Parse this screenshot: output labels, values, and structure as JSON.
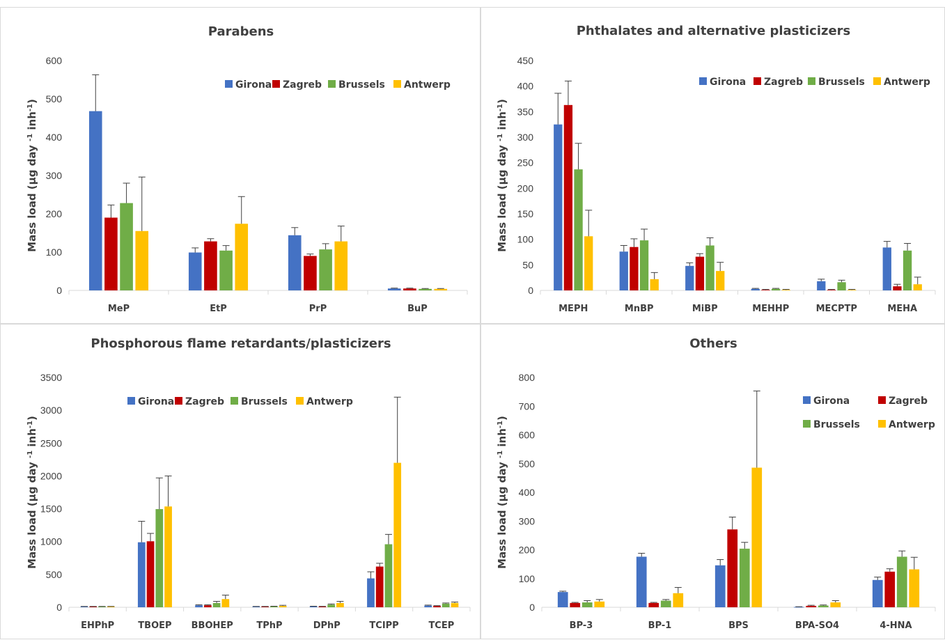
{
  "colors": {
    "Girona": "#4472c4",
    "Zagreb": "#c00000",
    "Brussels": "#70ad47",
    "Antwerp": "#ffc000"
  },
  "chart_data": [
    {
      "type": "bar",
      "title": "Parabens",
      "ylabel": "Mass load (µg day -1 inh-1)",
      "ylim": [
        0,
        600
      ],
      "yticks": [
        0,
        100,
        200,
        300,
        400,
        500,
        600
      ],
      "categories": [
        "MeP",
        "EtP",
        "PrP",
        "BuP"
      ],
      "legend": "top-right",
      "grid": false,
      "series": [
        {
          "name": "Girona",
          "values": [
            468,
            99,
            144,
            5
          ],
          "errors": [
            95,
            12,
            20,
            1
          ]
        },
        {
          "name": "Zagreb",
          "values": [
            190,
            128,
            90,
            5
          ],
          "errors": [
            33,
            7,
            5,
            1
          ]
        },
        {
          "name": "Brussels",
          "values": [
            228,
            104,
            107,
            4
          ],
          "errors": [
            52,
            13,
            15,
            1
          ]
        },
        {
          "name": "Antwerp",
          "values": [
            155,
            174,
            128,
            4
          ],
          "errors": [
            141,
            71,
            40,
            1
          ]
        }
      ]
    },
    {
      "type": "bar",
      "title": "Phthalates and alternative plasticizers",
      "ylabel": "Mass load (µg day -1 inh-1)",
      "ylim": [
        0,
        450
      ],
      "yticks": [
        0,
        50,
        100,
        150,
        200,
        250,
        300,
        350,
        400,
        450
      ],
      "categories": [
        "MEPH",
        "MnBP",
        "MiBP",
        "MEHHP",
        "MECPTP",
        "MEHA"
      ],
      "legend": "top-right",
      "grid": false,
      "series": [
        {
          "name": "Girona",
          "values": [
            325,
            76,
            48,
            3,
            18,
            84
          ],
          "errors": [
            61,
            12,
            6,
            1,
            4,
            12
          ]
        },
        {
          "name": "Zagreb",
          "values": [
            363,
            85,
            66,
            1,
            1,
            8
          ],
          "errors": [
            47,
            16,
            6,
            1,
            1,
            4
          ]
        },
        {
          "name": "Brussels",
          "values": [
            237,
            98,
            88,
            3,
            16,
            78
          ],
          "errors": [
            51,
            22,
            15,
            1,
            4,
            14
          ]
        },
        {
          "name": "Antwerp",
          "values": [
            106,
            22,
            38,
            1,
            1,
            12
          ],
          "errors": [
            51,
            13,
            17,
            1,
            1,
            14
          ]
        }
      ]
    },
    {
      "type": "bar",
      "title": "Phosphorous flame retardants/plasticizers",
      "ylabel": "Mass load (µg day -1 inh-1)",
      "ylim": [
        0,
        3500
      ],
      "yticks": [
        0,
        500,
        1000,
        1500,
        2000,
        2500,
        3000,
        3500
      ],
      "categories": [
        "EHPhP",
        "TBOEP",
        "BBOHEP",
        "TPhP",
        "DPhP",
        "TCIPP",
        "TCEP"
      ],
      "legend": "top-center",
      "grid": false,
      "series": [
        {
          "name": "Girona",
          "values": [
            10,
            990,
            30,
            10,
            12,
            440,
            25
          ],
          "errors": [
            3,
            320,
            8,
            3,
            4,
            100,
            8
          ]
        },
        {
          "name": "Zagreb",
          "values": [
            10,
            1005,
            30,
            10,
            10,
            620,
            20
          ],
          "errors": [
            3,
            120,
            8,
            3,
            4,
            50,
            5
          ]
        },
        {
          "name": "Brussels",
          "values": [
            10,
            1495,
            65,
            12,
            40,
            960,
            55
          ],
          "errors": [
            3,
            475,
            25,
            4,
            10,
            150,
            10
          ]
        },
        {
          "name": "Antwerp",
          "values": [
            10,
            1535,
            125,
            20,
            65,
            2200,
            65
          ],
          "errors": [
            3,
            465,
            60,
            10,
            25,
            1000,
            15
          ]
        }
      ]
    },
    {
      "type": "bar",
      "title": "Others",
      "ylabel": "Mass load (µg day -1 inh-1)",
      "ylim": [
        0,
        800
      ],
      "yticks": [
        0,
        100,
        200,
        300,
        400,
        500,
        600,
        700,
        800
      ],
      "categories": [
        "BP-3",
        "BP-1",
        "BPS",
        "BPA-SO4",
        "4-HNA"
      ],
      "legend": "top-right",
      "grid": false,
      "series": [
        {
          "name": "Girona",
          "values": [
            53,
            176,
            146,
            1,
            95
          ],
          "errors": [
            3,
            12,
            20,
            1,
            10
          ]
        },
        {
          "name": "Zagreb",
          "values": [
            15,
            15,
            271,
            5,
            124
          ],
          "errors": [
            2,
            2,
            43,
            2,
            10
          ]
        },
        {
          "name": "Brussels",
          "values": [
            17,
            23,
            204,
            6,
            176
          ],
          "errors": [
            6,
            4,
            22,
            2,
            20
          ]
        },
        {
          "name": "Antwerp",
          "values": [
            20,
            49,
            486,
            17,
            132
          ],
          "errors": [
            7,
            20,
            267,
            6,
            42
          ]
        }
      ]
    }
  ]
}
